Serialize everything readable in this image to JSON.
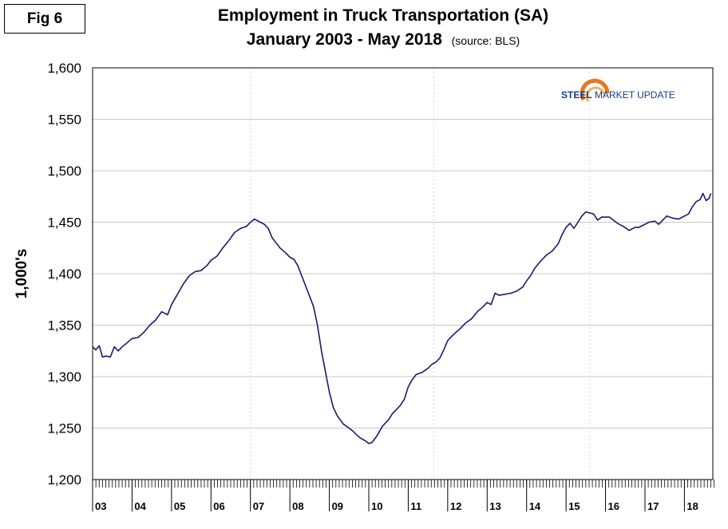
{
  "figure_label": "Fig 6",
  "title_line1": "Employment in Truck Transportation (SA)",
  "title_line2": "January 2003 - May 2018",
  "source": "(source: BLS)",
  "logo": {
    "word1": "STEEL",
    "word2": "MARKET UPDATE"
  },
  "colors": {
    "line": "#1a1a6e",
    "grid": "#c8c8c8",
    "logo_orange": "#e87722",
    "logo_blue": "#1a3a8c"
  },
  "chart_data": {
    "type": "line",
    "title": "Employment in Truck Transportation (SA)",
    "subtitle": "January 2003 - May 2018",
    "xlabel": "",
    "ylabel": "1,000's",
    "ylim": [
      1200,
      1600
    ],
    "yticks": [
      1200,
      1250,
      1300,
      1350,
      1400,
      1450,
      1500,
      1550,
      1600
    ],
    "ytick_labels": [
      "1,200",
      "1,250",
      "1,300",
      "1,350",
      "1,400",
      "1,450",
      "1,500",
      "1,550",
      "1,600"
    ],
    "xlim": [
      2003.0,
      2018.72
    ],
    "year_labels": [
      "03",
      "04",
      "05",
      "06",
      "07",
      "08",
      "09",
      "10",
      "11",
      "12",
      "13",
      "14",
      "15",
      "16",
      "17",
      "18"
    ],
    "grid": true,
    "series": [
      {
        "name": "Employment in Truck Transportation",
        "points": [
          [
            2003.0,
            1329
          ],
          [
            2003.08,
            1326
          ],
          [
            2003.17,
            1330
          ],
          [
            2003.25,
            1319
          ],
          [
            2003.35,
            1320
          ],
          [
            2003.45,
            1319
          ],
          [
            2003.55,
            1329
          ],
          [
            2003.65,
            1325
          ],
          [
            2003.75,
            1329
          ],
          [
            2003.85,
            1332
          ],
          [
            2004.0,
            1337
          ],
          [
            2004.15,
            1338
          ],
          [
            2004.3,
            1343
          ],
          [
            2004.45,
            1350
          ],
          [
            2004.6,
            1355
          ],
          [
            2004.75,
            1363
          ],
          [
            2004.9,
            1360
          ],
          [
            2005.0,
            1370
          ],
          [
            2005.15,
            1380
          ],
          [
            2005.3,
            1390
          ],
          [
            2005.45,
            1398
          ],
          [
            2005.6,
            1402
          ],
          [
            2005.75,
            1403
          ],
          [
            2005.9,
            1408
          ],
          [
            2006.0,
            1413
          ],
          [
            2006.15,
            1417
          ],
          [
            2006.3,
            1425
          ],
          [
            2006.45,
            1432
          ],
          [
            2006.6,
            1440
          ],
          [
            2006.75,
            1444
          ],
          [
            2006.9,
            1446
          ],
          [
            2007.0,
            1450
          ],
          [
            2007.1,
            1453
          ],
          [
            2007.25,
            1450
          ],
          [
            2007.35,
            1448
          ],
          [
            2007.45,
            1444
          ],
          [
            2007.55,
            1435
          ],
          [
            2007.65,
            1430
          ],
          [
            2007.75,
            1425
          ],
          [
            2007.9,
            1420
          ],
          [
            2008.0,
            1416
          ],
          [
            2008.1,
            1414
          ],
          [
            2008.2,
            1408
          ],
          [
            2008.35,
            1393
          ],
          [
            2008.5,
            1378
          ],
          [
            2008.6,
            1368
          ],
          [
            2008.7,
            1350
          ],
          [
            2008.8,
            1325
          ],
          [
            2008.9,
            1305
          ],
          [
            2009.0,
            1285
          ],
          [
            2009.1,
            1270
          ],
          [
            2009.2,
            1262
          ],
          [
            2009.35,
            1254
          ],
          [
            2009.5,
            1250
          ],
          [
            2009.6,
            1247
          ],
          [
            2009.7,
            1243
          ],
          [
            2009.8,
            1240
          ],
          [
            2009.9,
            1238
          ],
          [
            2010.0,
            1235
          ],
          [
            2010.08,
            1236
          ],
          [
            2010.2,
            1242
          ],
          [
            2010.35,
            1252
          ],
          [
            2010.5,
            1258
          ],
          [
            2010.6,
            1264
          ],
          [
            2010.7,
            1268
          ],
          [
            2010.8,
            1272
          ],
          [
            2010.9,
            1278
          ],
          [
            2011.0,
            1290
          ],
          [
            2011.1,
            1297
          ],
          [
            2011.2,
            1302
          ],
          [
            2011.35,
            1304
          ],
          [
            2011.5,
            1308
          ],
          [
            2011.6,
            1312
          ],
          [
            2011.7,
            1314
          ],
          [
            2011.8,
            1318
          ],
          [
            2011.9,
            1326
          ],
          [
            2012.0,
            1335
          ],
          [
            2012.15,
            1341
          ],
          [
            2012.3,
            1346
          ],
          [
            2012.45,
            1352
          ],
          [
            2012.6,
            1356
          ],
          [
            2012.75,
            1363
          ],
          [
            2012.9,
            1368
          ],
          [
            2013.0,
            1372
          ],
          [
            2013.1,
            1370
          ],
          [
            2013.2,
            1381
          ],
          [
            2013.3,
            1379
          ],
          [
            2013.45,
            1380
          ],
          [
            2013.6,
            1381
          ],
          [
            2013.75,
            1383
          ],
          [
            2013.9,
            1387
          ],
          [
            2014.0,
            1393
          ],
          [
            2014.1,
            1398
          ],
          [
            2014.2,
            1405
          ],
          [
            2014.35,
            1412
          ],
          [
            2014.5,
            1418
          ],
          [
            2014.65,
            1422
          ],
          [
            2014.8,
            1429
          ],
          [
            2014.9,
            1438
          ],
          [
            2015.0,
            1445
          ],
          [
            2015.1,
            1449
          ],
          [
            2015.2,
            1444
          ],
          [
            2015.3,
            1450
          ],
          [
            2015.4,
            1456
          ],
          [
            2015.5,
            1460
          ],
          [
            2015.6,
            1459
          ],
          [
            2015.7,
            1458
          ],
          [
            2015.8,
            1452
          ],
          [
            2015.9,
            1455
          ],
          [
            2016.0,
            1455
          ],
          [
            2016.1,
            1455
          ],
          [
            2016.2,
            1452
          ],
          [
            2016.3,
            1449
          ],
          [
            2016.45,
            1446
          ],
          [
            2016.6,
            1442
          ],
          [
            2016.75,
            1445
          ],
          [
            2016.85,
            1445
          ],
          [
            2016.95,
            1447
          ],
          [
            2017.0,
            1448
          ],
          [
            2017.1,
            1450
          ],
          [
            2017.25,
            1451
          ],
          [
            2017.35,
            1448
          ],
          [
            2017.45,
            1452
          ],
          [
            2017.55,
            1456
          ],
          [
            2017.7,
            1454
          ],
          [
            2017.85,
            1453
          ],
          [
            2017.95,
            1455
          ],
          [
            2018.0,
            1456
          ],
          [
            2018.1,
            1458
          ],
          [
            2018.2,
            1465
          ],
          [
            2018.3,
            1470
          ],
          [
            2018.4,
            1472
          ],
          [
            2018.47,
            1478
          ],
          [
            2018.55,
            1471
          ],
          [
            2018.62,
            1473
          ],
          [
            2018.67,
            1478
          ]
        ]
      }
    ]
  }
}
